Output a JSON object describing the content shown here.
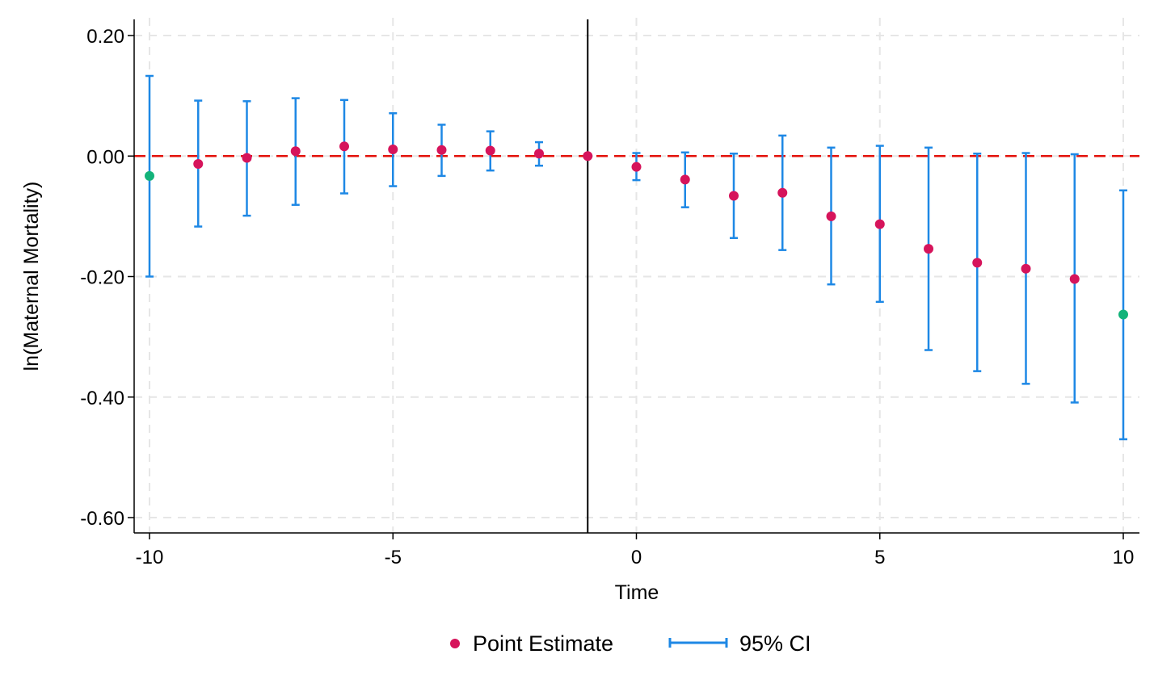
{
  "chart_data": {
    "type": "scatter",
    "xlabel": "Time",
    "ylabel": "ln(Maternal Mortality)",
    "xlim": [
      -10.3,
      10.35
    ],
    "ylim": [
      -0.625,
      0.225
    ],
    "x_ticks": [
      -10,
      -5,
      0,
      5,
      10
    ],
    "x_tick_labels": [
      "-10",
      "-5",
      "0",
      "5",
      "10"
    ],
    "y_ticks": [
      0.2,
      0.0,
      -0.2,
      -0.4,
      -0.6
    ],
    "y_tick_labels": [
      "0.20",
      "0.00",
      "-0.20",
      "-0.40",
      "-0.60"
    ],
    "grid": true,
    "reference_lines": {
      "horizontal_y": 0,
      "horizontal_color": "#e3120b",
      "vertical_x": -1,
      "vertical_color": "#000000"
    },
    "series": [
      {
        "name": "Point Estimate",
        "color": "#d6145b",
        "endpoint_color": "#13b37a",
        "x": [
          -10,
          -9,
          -8,
          -7,
          -6,
          -5,
          -4,
          -3,
          -2,
          -1,
          0,
          1,
          2,
          3,
          4,
          5,
          6,
          7,
          8,
          9,
          10
        ],
        "y": [
          -0.033,
          -0.013,
          -0.003,
          0.008,
          0.016,
          0.011,
          0.01,
          0.009,
          0.004,
          0.0,
          -0.018,
          -0.039,
          -0.066,
          -0.061,
          -0.1,
          -0.113,
          -0.154,
          -0.177,
          -0.187,
          -0.204,
          -0.263
        ]
      },
      {
        "name": "95% CI",
        "color": "#1e88e5",
        "x": [
          -10,
          -9,
          -8,
          -7,
          -6,
          -5,
          -4,
          -3,
          -2,
          0,
          1,
          2,
          3,
          4,
          5,
          6,
          7,
          8,
          9,
          10
        ],
        "lower": [
          -0.2,
          -0.117,
          -0.099,
          -0.081,
          -0.062,
          -0.05,
          -0.033,
          -0.024,
          -0.016,
          -0.04,
          -0.085,
          -0.136,
          -0.156,
          -0.213,
          -0.242,
          -0.322,
          -0.357,
          -0.378,
          -0.409,
          -0.47
        ],
        "upper": [
          0.133,
          0.092,
          0.091,
          0.096,
          0.093,
          0.071,
          0.052,
          0.041,
          0.023,
          0.005,
          0.006,
          0.004,
          0.034,
          0.014,
          0.017,
          0.014,
          0.004,
          0.005,
          0.003,
          -0.057
        ]
      }
    ],
    "legend": {
      "position": "bottom",
      "items": [
        "Point Estimate",
        "95% CI"
      ]
    }
  }
}
